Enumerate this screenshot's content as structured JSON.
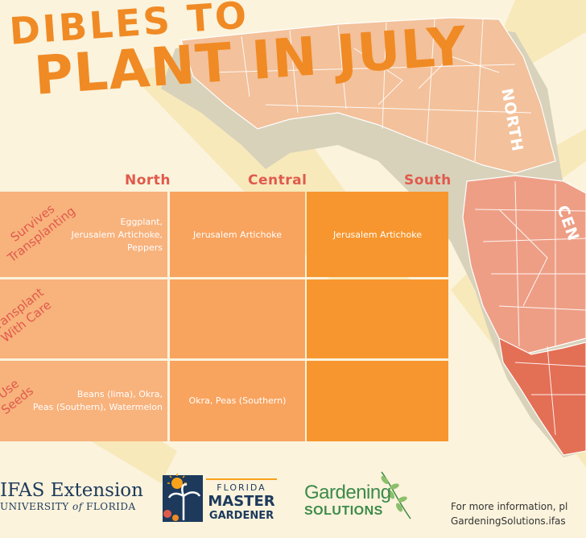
{
  "title": {
    "line1": "DIBLES TO",
    "line2": "PLANT IN JULY"
  },
  "map_labels": {
    "north": "NORTH",
    "central": "CEN"
  },
  "regions": [
    "North",
    "Central",
    "South"
  ],
  "rows": [
    {
      "label_lines": [
        "Survives",
        "Transplanting"
      ],
      "north": [
        "Eggplant,",
        "Jerusalem Artichoke,",
        "Peppers"
      ],
      "central": [
        "Jerusalem Artichoke"
      ],
      "south": [
        "Jerusalem Artichoke"
      ]
    },
    {
      "label_lines": [
        "Transplant",
        "With Care"
      ],
      "north": [],
      "central": [],
      "south": []
    },
    {
      "label_lines": [
        "Use",
        "Seeds"
      ],
      "north": [
        "Beans (lima), Okra,",
        "Peas (Southern), Watermelon"
      ],
      "central": [
        "Okra, Peas (Southern)"
      ],
      "south": []
    }
  ],
  "footer": {
    "ifas_main": "IFAS Extension",
    "ifas_sub_pre": "UNIVERSITY ",
    "ifas_sub_of": "of",
    "ifas_sub_post": " FLORIDA",
    "fmg_line1": "FLORIDA",
    "fmg_line2": "MASTER",
    "fmg_line3": "GARDENER",
    "gs_line1": "Gardening",
    "gs_line2": "SOLUTIONS",
    "more_info_line1": "For more information, pl",
    "more_info_line2": "GardeningSolutions.ifas"
  },
  "colors": {
    "accent_orange": "#f08a24",
    "label_red": "#e05a4c",
    "north_cell": "#f8b27c",
    "central_cell": "#f8a35e",
    "south_cell": "#f7962e",
    "ifas_navy": "#1d3a5c",
    "gs_green": "#3d8a4a"
  }
}
